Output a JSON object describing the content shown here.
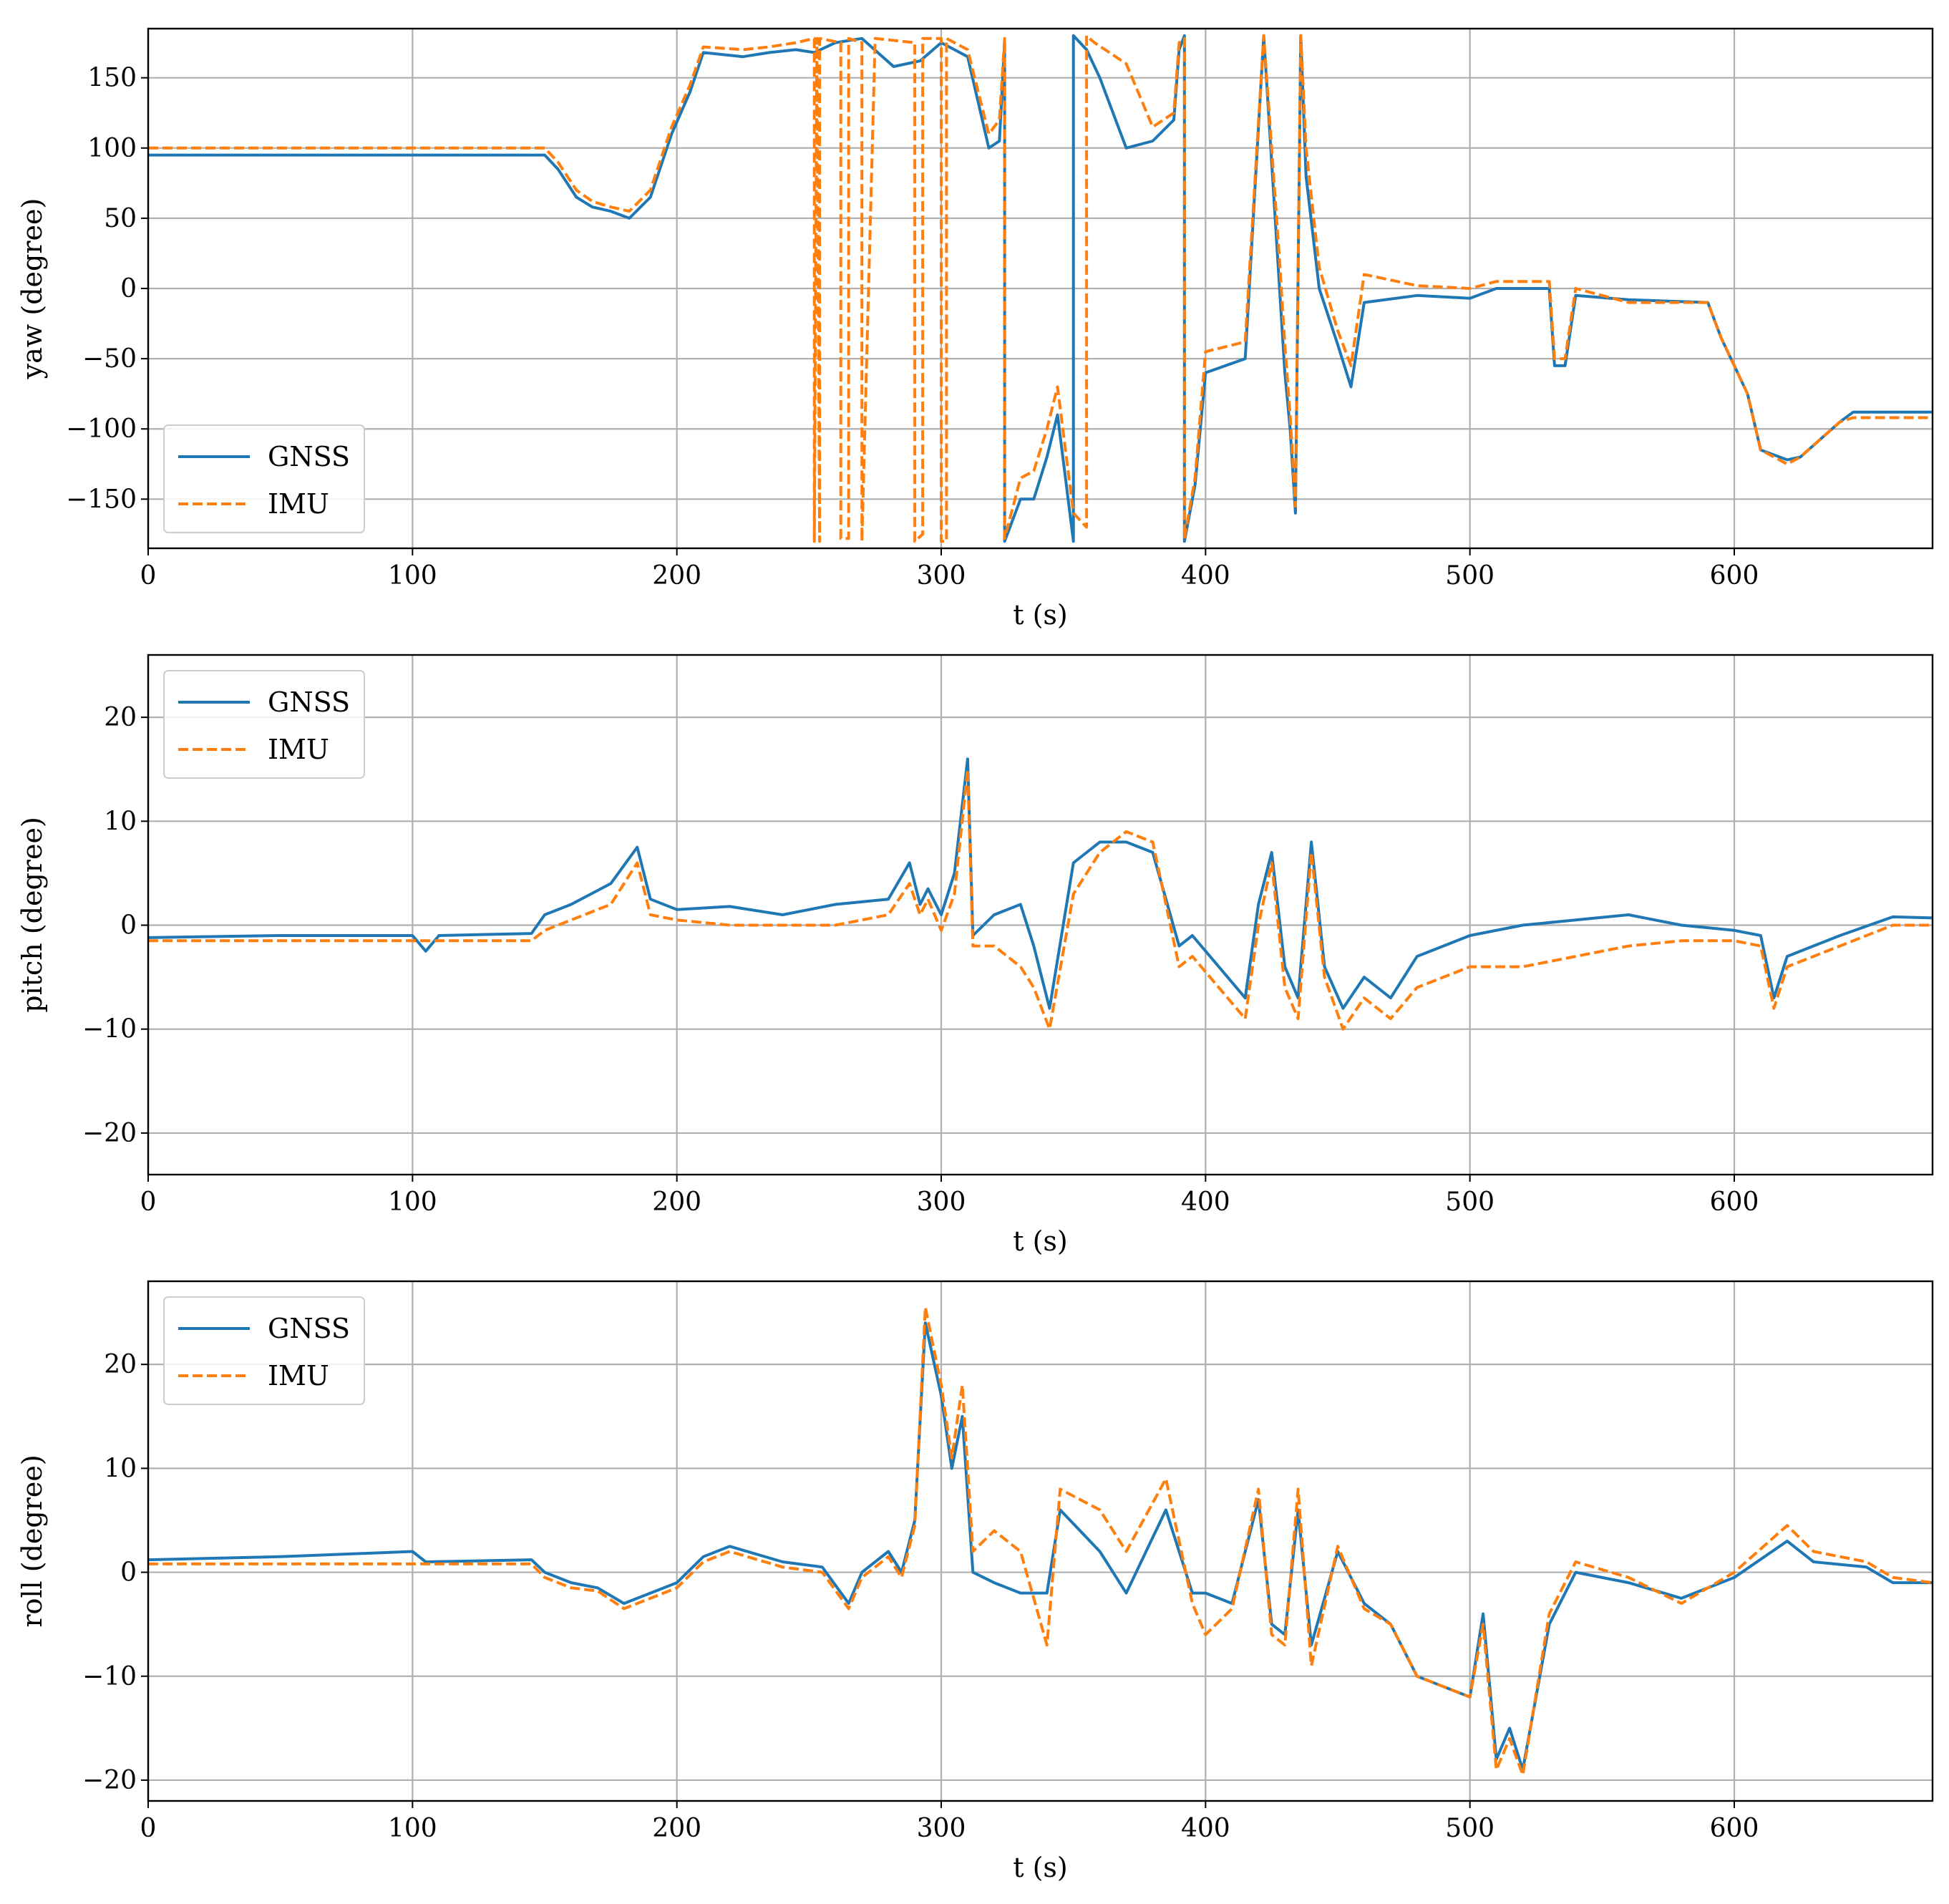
{
  "colors": {
    "gnss": "#1f77b4",
    "imu": "#ff7f0e",
    "grid": "#b0b0b0",
    "frame": "#000000"
  },
  "legend_labels": [
    "GNSS",
    "IMU"
  ],
  "chart_data": [
    {
      "type": "line",
      "ylabel": "yaw (degree)",
      "xlabel": "t (s)",
      "xlim": [
        0,
        675
      ],
      "ylim": [
        -185,
        185
      ],
      "grid": true,
      "legend": "lower-left",
      "xticks": [
        0,
        100,
        200,
        300,
        400,
        500,
        600
      ],
      "xtick_labels": [
        "0",
        "100",
        "200",
        "300",
        "400",
        "500",
        "600"
      ],
      "yticks": [
        150,
        100,
        50,
        0,
        -50,
        -100,
        -150
      ],
      "ytick_labels": [
        "150",
        "100",
        "50",
        "0",
        "−50",
        "−100",
        "−150"
      ],
      "series": [
        {
          "name": "GNSS",
          "style": "solid",
          "x": [
            0,
            150,
            155,
            162,
            168,
            175,
            182,
            190,
            198,
            205,
            210,
            225,
            235,
            245,
            252,
            260,
            270,
            282,
            292,
            300,
            305,
            310,
            318,
            322,
            324,
            324,
            330,
            335,
            340,
            344,
            350,
            350,
            355,
            360,
            370,
            380,
            388,
            390,
            392,
            392,
            396,
            400,
            415,
            422,
            428,
            430,
            432,
            434,
            436,
            438,
            443,
            450,
            455,
            460,
            480,
            500,
            510,
            520,
            530,
            532,
            536,
            540,
            560,
            590,
            595,
            600,
            605,
            610,
            620,
            625,
            640,
            645,
            655,
            675
          ],
          "y": [
            95,
            95,
            85,
            65,
            58,
            55,
            50,
            65,
            110,
            140,
            168,
            165,
            168,
            170,
            168,
            175,
            178,
            158,
            162,
            175,
            170,
            165,
            100,
            105,
            175,
            -180,
            -150,
            -150,
            -120,
            -90,
            -180,
            180,
            170,
            150,
            100,
            105,
            120,
            170,
            180,
            -180,
            -140,
            -60,
            -50,
            180,
            0,
            -60,
            -100,
            -160,
            180,
            80,
            0,
            -40,
            -70,
            -10,
            -5,
            -7,
            0,
            0,
            0,
            -55,
            -55,
            -5,
            -8,
            -10,
            -35,
            -55,
            -75,
            -115,
            -122,
            -120,
            -95,
            -88,
            -88,
            -88
          ]
        },
        {
          "name": "IMU",
          "style": "dashed",
          "x": [
            0,
            150,
            155,
            162,
            168,
            175,
            182,
            190,
            198,
            205,
            210,
            225,
            235,
            245,
            252,
            252,
            253,
            254,
            254,
            262,
            262,
            265,
            265,
            270,
            270,
            275,
            290,
            290,
            293,
            293,
            300,
            300,
            302,
            302,
            305,
            310,
            318,
            322,
            324,
            324,
            330,
            335,
            340,
            344,
            350,
            355,
            355,
            356,
            358,
            370,
            380,
            388,
            390,
            392,
            392,
            396,
            400,
            415,
            422,
            428,
            430,
            432,
            434,
            436,
            438,
            443,
            450,
            455,
            460,
            480,
            500,
            510,
            520,
            530,
            532,
            536,
            540,
            560,
            590,
            595,
            600,
            605,
            610,
            620,
            625,
            640,
            645,
            655,
            675
          ],
          "y": [
            100,
            100,
            90,
            70,
            62,
            58,
            55,
            70,
            115,
            145,
            172,
            170,
            172,
            175,
            178,
            -180,
            178,
            -180,
            178,
            175,
            -178,
            -178,
            178,
            175,
            -180,
            178,
            175,
            -180,
            -175,
            178,
            178,
            -180,
            -180,
            178,
            175,
            170,
            110,
            120,
            178,
            -178,
            -135,
            -130,
            -100,
            -70,
            -160,
            -170,
            180,
            178,
            175,
            160,
            115,
            125,
            175,
            178,
            -178,
            -135,
            -45,
            -38,
            180,
            20,
            -40,
            -90,
            -155,
            180,
            100,
            15,
            -30,
            -55,
            10,
            2,
            0,
            5,
            5,
            5,
            -50,
            -50,
            0,
            -10,
            -10,
            -35,
            -55,
            -75,
            -115,
            -125,
            -120,
            -95,
            -92,
            -92,
            -92
          ]
        }
      ]
    },
    {
      "type": "line",
      "ylabel": "pitch (degree)",
      "xlabel": "t (s)",
      "xlim": [
        0,
        675
      ],
      "ylim": [
        -24,
        26
      ],
      "grid": true,
      "legend": "upper-left",
      "xticks": [
        0,
        100,
        200,
        300,
        400,
        500,
        600
      ],
      "xtick_labels": [
        "0",
        "100",
        "200",
        "300",
        "400",
        "500",
        "600"
      ],
      "yticks": [
        20,
        10,
        0,
        -10,
        -20
      ],
      "ytick_labels": [
        "20",
        "10",
        "0",
        "−10",
        "−20"
      ],
      "series": [
        {
          "name": "GNSS",
          "style": "solid",
          "x": [
            0,
            50,
            100,
            105,
            110,
            145,
            150,
            160,
            175,
            185,
            190,
            200,
            220,
            240,
            260,
            280,
            288,
            292,
            295,
            300,
            305,
            310,
            312,
            320,
            330,
            335,
            341,
            350,
            360,
            370,
            380,
            390,
            395,
            405,
            415,
            420,
            425,
            430,
            435,
            440,
            445,
            452,
            460,
            470,
            480,
            490,
            500,
            520,
            540,
            560,
            580,
            600,
            610,
            615,
            620,
            640,
            660,
            675
          ],
          "y": [
            -1.2,
            -1,
            -1,
            -2.5,
            -1,
            -0.8,
            1,
            2,
            4,
            7.5,
            2.5,
            1.5,
            1.8,
            1,
            2,
            2.5,
            6,
            2,
            3.5,
            1,
            5,
            16,
            -1,
            1,
            2,
            -2,
            -8,
            6,
            8,
            8,
            7,
            -2,
            -1,
            -4,
            -7,
            2,
            7,
            -4,
            -7,
            8,
            -4,
            -8,
            -5,
            -7,
            -3,
            -2,
            -1,
            0,
            0.5,
            1,
            0,
            -0.5,
            -1,
            -7,
            -3,
            -1,
            0.8,
            0.7
          ]
        },
        {
          "name": "IMU",
          "style": "dashed",
          "x": [
            0,
            50,
            100,
            145,
            150,
            160,
            175,
            185,
            190,
            200,
            220,
            240,
            260,
            280,
            288,
            292,
            295,
            300,
            305,
            310,
            312,
            320,
            330,
            335,
            341,
            350,
            360,
            370,
            380,
            390,
            395,
            405,
            415,
            420,
            425,
            430,
            435,
            440,
            445,
            452,
            460,
            470,
            480,
            490,
            500,
            520,
            540,
            560,
            580,
            600,
            610,
            615,
            620,
            640,
            660,
            675
          ],
          "y": [
            -1.5,
            -1.5,
            -1.5,
            -1.5,
            -0.5,
            0.5,
            2,
            6,
            1,
            0.5,
            0,
            0,
            0,
            1,
            4,
            1,
            2.5,
            -0.5,
            3,
            15,
            -2,
            -2,
            -4,
            -6,
            -10,
            3,
            7,
            9,
            8,
            -4,
            -3,
            -6,
            -9,
            0,
            6,
            -6,
            -9,
            7,
            -5,
            -10,
            -7,
            -9,
            -6,
            -5,
            -4,
            -4,
            -3,
            -2,
            -1.5,
            -1.5,
            -2,
            -8,
            -4,
            -2,
            0,
            0
          ]
        }
      ]
    },
    {
      "type": "line",
      "ylabel": "roll (degree)",
      "xlabel": "t (s)",
      "xlim": [
        0,
        675
      ],
      "ylim": [
        -22,
        28
      ],
      "grid": true,
      "legend": "upper-left",
      "xticks": [
        0,
        100,
        200,
        300,
        400,
        500,
        600
      ],
      "xtick_labels": [
        "0",
        "100",
        "200",
        "300",
        "400",
        "500",
        "600"
      ],
      "yticks": [
        20,
        10,
        0,
        -10,
        -20
      ],
      "ytick_labels": [
        "20",
        "10",
        "0",
        "−10",
        "−20"
      ],
      "series": [
        {
          "name": "GNSS",
          "style": "solid",
          "x": [
            0,
            50,
            100,
            105,
            145,
            150,
            160,
            170,
            180,
            190,
            200,
            210,
            220,
            240,
            255,
            265,
            270,
            280,
            285,
            290,
            294,
            300,
            304,
            308,
            312,
            320,
            330,
            340,
            345,
            360,
            370,
            385,
            395,
            400,
            410,
            420,
            425,
            430,
            435,
            440,
            450,
            460,
            470,
            480,
            490,
            500,
            505,
            510,
            515,
            520,
            530,
            540,
            560,
            580,
            600,
            620,
            630,
            650,
            660,
            675
          ],
          "y": [
            1.2,
            1.5,
            2,
            1,
            1.2,
            0,
            -1,
            -1.5,
            -3,
            -2,
            -1,
            1.5,
            2.5,
            1,
            0.5,
            -3,
            0,
            2,
            0,
            5,
            24,
            17,
            10,
            15,
            0,
            -1,
            -2,
            -2,
            6,
            2,
            -2,
            6,
            -2,
            -2,
            -3,
            7,
            -5,
            -6,
            6,
            -7,
            2,
            -3,
            -5,
            -10,
            -11,
            -12,
            -4,
            -18,
            -15,
            -19,
            -5,
            0,
            -1,
            -2.5,
            -0.5,
            3,
            1,
            0.5,
            -1,
            -1
          ]
        },
        {
          "name": "IMU",
          "style": "dashed",
          "x": [
            0,
            50,
            100,
            105,
            145,
            150,
            160,
            170,
            180,
            190,
            200,
            210,
            220,
            240,
            255,
            265,
            270,
            280,
            285,
            290,
            294,
            300,
            304,
            308,
            312,
            320,
            330,
            340,
            345,
            360,
            370,
            385,
            395,
            400,
            410,
            420,
            425,
            430,
            435,
            440,
            450,
            460,
            470,
            480,
            490,
            500,
            505,
            510,
            515,
            520,
            530,
            540,
            560,
            580,
            600,
            620,
            630,
            650,
            660,
            675
          ],
          "y": [
            0.8,
            0.8,
            0.8,
            0.8,
            0.8,
            -0.5,
            -1.5,
            -1.8,
            -3.5,
            -2.5,
            -1.5,
            1,
            2,
            0.5,
            0,
            -3.5,
            -0.5,
            1.5,
            -0.5,
            4.5,
            25.5,
            18,
            11,
            18,
            2,
            4,
            2,
            -7,
            8,
            6,
            2,
            9,
            -3,
            -6,
            -3.5,
            8,
            -6,
            -7,
            8,
            -9,
            2.5,
            -3.5,
            -5,
            -10,
            -11,
            -12,
            -5,
            -19,
            -16,
            -19.5,
            -4,
            1,
            -0.5,
            -3,
            0,
            4.5,
            2,
            1,
            -0.5,
            -1
          ]
        }
      ]
    }
  ]
}
